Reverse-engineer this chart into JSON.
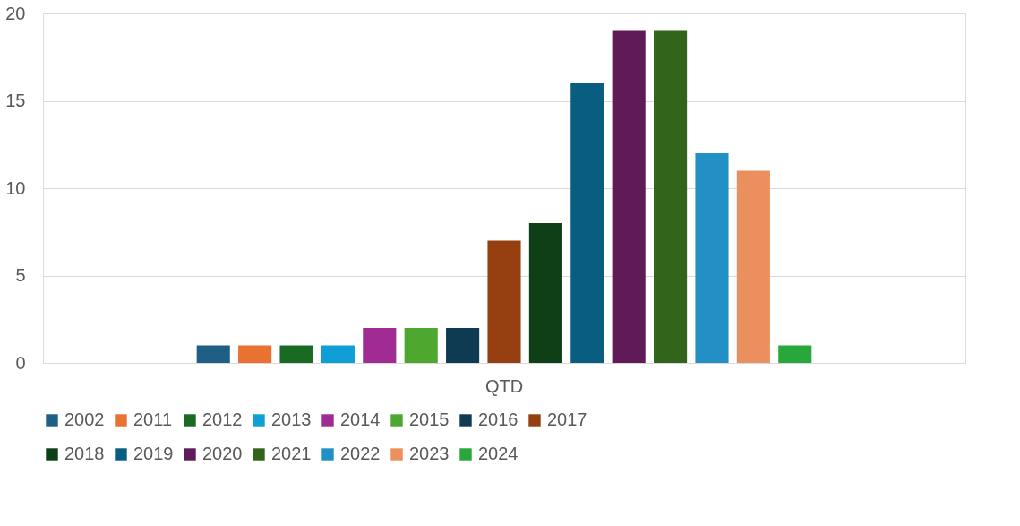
{
  "chart_data": {
    "type": "bar",
    "categories": [
      "QTD"
    ],
    "ylim": [
      0,
      20
    ],
    "yticks": [
      0,
      5,
      10,
      15,
      20
    ],
    "grid": "y",
    "legend": "bottom",
    "series": [
      {
        "name": "2002",
        "color": "#1f5f86",
        "values": [
          1
        ]
      },
      {
        "name": "2011",
        "color": "#e97132",
        "values": [
          1
        ]
      },
      {
        "name": "2012",
        "color": "#196b24",
        "values": [
          1
        ]
      },
      {
        "name": "2013",
        "color": "#0f9ed5",
        "values": [
          1
        ]
      },
      {
        "name": "2014",
        "color": "#a02b93",
        "values": [
          2
        ]
      },
      {
        "name": "2015",
        "color": "#4ea72e",
        "values": [
          2
        ]
      },
      {
        "name": "2016",
        "color": "#0e3a52",
        "values": [
          2
        ]
      },
      {
        "name": "2017",
        "color": "#963f10",
        "values": [
          7
        ]
      },
      {
        "name": "2018",
        "color": "#0f3f16",
        "values": [
          8
        ]
      },
      {
        "name": "2019",
        "color": "#085d80",
        "values": [
          16
        ]
      },
      {
        "name": "2020",
        "color": "#601a58",
        "values": [
          19
        ]
      },
      {
        "name": "2021",
        "color": "#32641c",
        "values": [
          19
        ]
      },
      {
        "name": "2022",
        "color": "#2290c5",
        "values": [
          12
        ]
      },
      {
        "name": "2023",
        "color": "#ec8f5e",
        "values": [
          11
        ]
      },
      {
        "name": "2024",
        "color": "#28a73b",
        "values": [
          1
        ]
      }
    ]
  }
}
